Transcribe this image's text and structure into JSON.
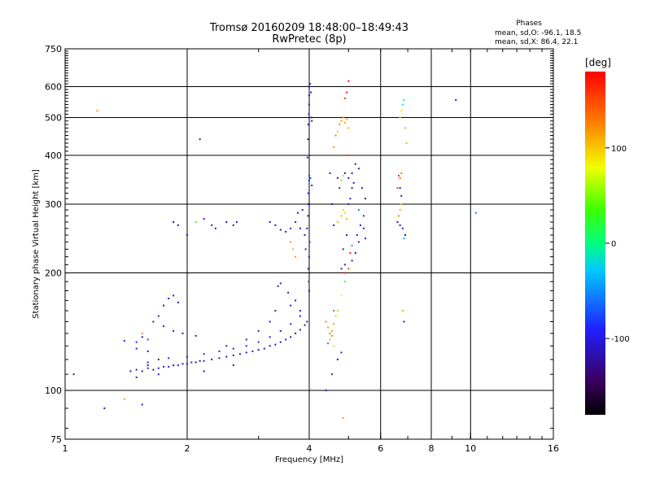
{
  "chart_data": {
    "type": "scatter",
    "title": "Tromsø 20160209 18:48:00–18:49:43",
    "subtitle": "RwPretec (8p)",
    "xlabel": "Frequency [MHz]",
    "ylabel": "Stationary phase Virtual Height [km]",
    "xscale": "log",
    "yscale": "log",
    "xlim": [
      1,
      16
    ],
    "ylim": [
      75,
      750
    ],
    "xticks": [
      1,
      2,
      4,
      6,
      8,
      10,
      16
    ],
    "xtick_labels": [
      "1",
      "2",
      "4",
      "6",
      "8",
      "10",
      "16"
    ],
    "xgrid": [
      2,
      4,
      6,
      8,
      10
    ],
    "yticks": [
      75,
      100,
      200,
      300,
      400,
      500,
      600,
      750
    ],
    "ytick_labels": [
      "75",
      "100",
      "200",
      "300",
      "400",
      "500",
      "600",
      "750"
    ],
    "ygrid": [
      100,
      200,
      300,
      400,
      500,
      600
    ],
    "grid": true,
    "phase_box": {
      "heading": "Phases",
      "line_o": "mean, sd,O: -96.1, 18.5",
      "line_x": "mean, sd,X:  86.4, 22.1"
    },
    "colorbar": {
      "label": "[deg]",
      "range": [
        -180,
        180
      ],
      "ticks": [
        100,
        0,
        -100
      ],
      "tick_labels": [
        "100",
        "0",
        "-100"
      ]
    },
    "echoes": [
      {
        "name": "low-band trace",
        "points": [
          [
            1.45,
            112,
            -110
          ],
          [
            1.5,
            113,
            -112
          ],
          [
            1.55,
            112,
            -105
          ],
          [
            1.6,
            114,
            -108
          ],
          [
            1.65,
            113,
            -110
          ],
          [
            1.7,
            114,
            -106
          ],
          [
            1.75,
            115,
            -112
          ],
          [
            1.8,
            115,
            -108
          ],
          [
            1.85,
            116,
            -110
          ],
          [
            1.9,
            116,
            -104
          ],
          [
            1.95,
            117,
            -110
          ],
          [
            2.0,
            117,
            -107
          ],
          [
            2.05,
            118,
            -112
          ],
          [
            2.1,
            118,
            -106
          ],
          [
            2.15,
            119,
            -110
          ],
          [
            2.2,
            119,
            -105
          ],
          [
            2.3,
            120,
            -110
          ],
          [
            2.4,
            121,
            -104
          ],
          [
            2.5,
            122,
            -110
          ],
          [
            2.6,
            123,
            -106
          ],
          [
            2.7,
            124,
            -112
          ],
          [
            2.8,
            125,
            -108
          ],
          [
            2.9,
            126,
            -110
          ],
          [
            3.0,
            127,
            -103
          ],
          [
            3.1,
            128,
            -112
          ],
          [
            3.2,
            130,
            -110
          ],
          [
            3.3,
            131,
            -118
          ],
          [
            3.4,
            133,
            -110
          ],
          [
            3.5,
            135,
            -106
          ],
          [
            3.6,
            137,
            -112
          ],
          [
            3.7,
            140,
            -110
          ],
          [
            3.8,
            143,
            -105
          ],
          [
            3.9,
            147,
            -110
          ],
          [
            3.95,
            150,
            -108
          ]
        ]
      },
      {
        "name": "low-band upper trace",
        "points": [
          [
            1.6,
            118,
            -95
          ],
          [
            1.7,
            120,
            -100
          ],
          [
            1.8,
            121,
            -98
          ],
          [
            2.0,
            122,
            -102
          ],
          [
            2.2,
            124,
            -100
          ],
          [
            2.4,
            126,
            -96
          ],
          [
            2.6,
            128,
            -102
          ],
          [
            2.8,
            130,
            -100
          ],
          [
            3.0,
            133,
            -98
          ],
          [
            3.2,
            137,
            -104
          ],
          [
            3.4,
            142,
            -100
          ],
          [
            3.6,
            148,
            -97
          ],
          [
            3.8,
            155,
            -102
          ]
        ]
      },
      {
        "name": "low-band scatter",
        "points": [
          [
            1.4,
            134,
            -100
          ],
          [
            1.5,
            128,
            -110
          ],
          [
            1.55,
            137,
            -105
          ],
          [
            1.6,
            126,
            -108
          ],
          [
            1.65,
            150,
            -112
          ],
          [
            1.7,
            155,
            -104
          ],
          [
            1.75,
            165,
            -110
          ],
          [
            1.8,
            172,
            -106
          ],
          [
            1.85,
            175,
            -110
          ],
          [
            1.9,
            168,
            -108
          ],
          [
            1.75,
            146,
            -104
          ],
          [
            1.85,
            142,
            -112
          ],
          [
            1.95,
            140,
            -106
          ],
          [
            2.1,
            138,
            -110
          ],
          [
            2.5,
            130,
            -104
          ],
          [
            2.8,
            135,
            -112
          ],
          [
            3.0,
            142,
            -108
          ],
          [
            3.2,
            150,
            -110
          ],
          [
            3.3,
            160,
            -104
          ],
          [
            3.35,
            185,
            -110
          ],
          [
            3.4,
            188,
            -106
          ],
          [
            3.55,
            178,
            -110
          ],
          [
            3.6,
            165,
            -104
          ],
          [
            3.7,
            170,
            -110
          ],
          [
            3.8,
            160,
            -108
          ],
          [
            1.5,
            108,
            -110
          ],
          [
            1.6,
            116,
            -112
          ],
          [
            1.7,
            110,
            -108
          ],
          [
            2.2,
            112,
            -104
          ],
          [
            2.6,
            116,
            -110
          ],
          [
            1.55,
            140,
            120
          ],
          [
            1.6,
            135,
            -80
          ],
          [
            1.5,
            133,
            -90
          ]
        ]
      },
      {
        "name": "Fregion 4MHz",
        "points": [
          [
            3.95,
            260,
            -110
          ],
          [
            3.97,
            280,
            -106
          ],
          [
            3.98,
            300,
            -112
          ],
          [
            3.98,
            320,
            -104
          ],
          [
            4.0,
            345,
            -85
          ],
          [
            4.0,
            355,
            -70
          ],
          [
            4.01,
            240,
            -110
          ],
          [
            4.0,
            220,
            -106
          ],
          [
            3.98,
            205,
            -112
          ],
          [
            3.99,
            190,
            -104
          ],
          [
            4.0,
            180,
            -110
          ],
          [
            3.96,
            395,
            -108
          ],
          [
            3.97,
            440,
            -112
          ],
          [
            3.98,
            480,
            -106
          ],
          [
            3.99,
            510,
            -110
          ],
          [
            4.0,
            540,
            -104
          ],
          [
            4.0,
            570,
            -112
          ],
          [
            4.0,
            600,
            -108
          ],
          [
            4.02,
            610,
            -110
          ],
          [
            4.05,
            500,
            -104
          ],
          [
            4.06,
            490,
            -112
          ],
          [
            4.04,
            580,
            -106
          ],
          [
            4.03,
            350,
            -60
          ],
          [
            4.06,
            335,
            -110
          ],
          [
            3.7,
            270,
            -100
          ],
          [
            3.75,
            285,
            -106
          ],
          [
            3.8,
            260,
            -110
          ],
          [
            3.85,
            290,
            -112
          ],
          [
            3.9,
            250,
            -104
          ],
          [
            3.92,
            230,
            -110
          ]
        ]
      },
      {
        "name": "mixed band 4.5-5.5MHz",
        "points": [
          [
            4.4,
            150,
            120
          ],
          [
            4.45,
            145,
            118
          ],
          [
            4.5,
            140,
            122
          ],
          [
            4.55,
            142,
            115
          ],
          [
            4.6,
            148,
            120
          ],
          [
            4.5,
            135,
            110
          ],
          [
            4.55,
            138,
            125
          ],
          [
            4.6,
            130,
            60
          ],
          [
            4.45,
            132,
            -60
          ],
          [
            4.7,
            160,
            100
          ],
          [
            4.8,
            175,
            80
          ],
          [
            4.9,
            190,
            40
          ],
          [
            4.8,
            205,
            -110
          ],
          [
            4.9,
            210,
            -100
          ],
          [
            4.85,
            230,
            -105
          ],
          [
            4.95,
            250,
            -110
          ],
          [
            4.7,
            270,
            105
          ],
          [
            4.8,
            280,
            110
          ],
          [
            4.85,
            290,
            100
          ],
          [
            4.9,
            285,
            60
          ],
          [
            4.95,
            275,
            108
          ],
          [
            5.0,
            300,
            -100
          ],
          [
            5.05,
            310,
            -110
          ],
          [
            5.1,
            330,
            -105
          ],
          [
            5.15,
            340,
            -112
          ],
          [
            4.75,
            480,
            120
          ],
          [
            4.8,
            490,
            118
          ],
          [
            4.85,
            500,
            122
          ],
          [
            4.9,
            485,
            115
          ],
          [
            4.95,
            495,
            110
          ],
          [
            4.7,
            460,
            100
          ],
          [
            5.0,
            470,
            108
          ],
          [
            4.6,
            420,
            118
          ],
          [
            4.65,
            450,
            130
          ],
          [
            4.5,
            360,
            -110
          ],
          [
            4.55,
            300,
            -105
          ],
          [
            4.6,
            265,
            -110
          ],
          [
            4.7,
            350,
            -105
          ],
          [
            4.75,
            330,
            -100
          ],
          [
            4.8,
            345,
            40
          ],
          [
            4.85,
            355,
            60
          ],
          [
            4.9,
            360,
            -110
          ],
          [
            5.0,
            350,
            -112
          ],
          [
            5.1,
            360,
            -108
          ],
          [
            5.2,
            380,
            -104
          ],
          [
            5.3,
            370,
            -110
          ],
          [
            5.4,
            330,
            -106
          ],
          [
            5.5,
            310,
            -112
          ],
          [
            5.45,
            280,
            -108
          ],
          [
            5.35,
            265,
            -104
          ],
          [
            5.25,
            250,
            -110
          ],
          [
            5.3,
            240,
            -106
          ],
          [
            5.2,
            225,
            -112
          ],
          [
            5.1,
            215,
            -108
          ],
          [
            5.0,
            205,
            150
          ],
          [
            4.95,
            400,
            150
          ],
          [
            4.9,
            560,
            160
          ],
          [
            4.95,
            580,
            170
          ],
          [
            5.0,
            620,
            175
          ],
          [
            5.3,
            290,
            -60
          ],
          [
            5.45,
            260,
            -100
          ],
          [
            5.5,
            245,
            -112
          ],
          [
            5.1,
            235,
            -40
          ],
          [
            5.05,
            225,
            170
          ],
          [
            4.9,
            200,
            170
          ],
          [
            4.6,
            160,
            150
          ],
          [
            4.65,
            155,
            60
          ],
          [
            4.7,
            120,
            -110
          ],
          [
            4.8,
            125,
            -106
          ],
          [
            4.55,
            110,
            -100
          ],
          [
            4.4,
            100,
            -105
          ],
          [
            4.85,
            85,
            110
          ]
        ]
      },
      {
        "name": "upper band",
        "points": [
          [
            6.6,
            270,
            -110
          ],
          [
            6.7,
            265,
            -106
          ],
          [
            6.65,
            280,
            120
          ],
          [
            6.7,
            290,
            110
          ],
          [
            6.75,
            300,
            100
          ],
          [
            6.6,
            330,
            150
          ],
          [
            6.65,
            355,
            160
          ],
          [
            6.7,
            350,
            140
          ],
          [
            6.75,
            360,
            130
          ],
          [
            6.8,
            260,
            -100
          ],
          [
            6.85,
            245,
            -40
          ],
          [
            6.9,
            250,
            -110
          ],
          [
            6.7,
            500,
            100
          ],
          [
            6.75,
            520,
            90
          ],
          [
            6.8,
            540,
            -20
          ],
          [
            6.85,
            555,
            10
          ],
          [
            6.9,
            470,
            110
          ],
          [
            6.95,
            430,
            105
          ],
          [
            6.8,
            160,
            110
          ],
          [
            6.85,
            150,
            -100
          ],
          [
            9.2,
            555,
            -112
          ],
          [
            10.3,
            285,
            -60
          ],
          [
            6.7,
            330,
            -105
          ],
          [
            6.75,
            315,
            -110
          ]
        ]
      },
      {
        "name": "isolated points",
        "points": [
          [
            1.2,
            520,
            120
          ],
          [
            1.4,
            95,
            115
          ],
          [
            1.55,
            92,
            -110
          ],
          [
            1.05,
            110,
            -110
          ],
          [
            1.25,
            90,
            -110
          ],
          [
            1.85,
            270,
            -105
          ],
          [
            1.9,
            265,
            -110
          ],
          [
            2.0,
            250,
            -110
          ],
          [
            2.1,
            270,
            30
          ],
          [
            2.15,
            440,
            -110
          ],
          [
            2.2,
            275,
            -105
          ],
          [
            2.3,
            265,
            -110
          ],
          [
            2.35,
            260,
            -106
          ],
          [
            2.5,
            270,
            -108
          ],
          [
            2.6,
            265,
            -104
          ],
          [
            2.65,
            270,
            -100
          ],
          [
            3.2,
            270,
            -110
          ],
          [
            3.3,
            265,
            -106
          ],
          [
            3.4,
            258,
            -112
          ],
          [
            3.5,
            255,
            -104
          ],
          [
            3.6,
            260,
            -110
          ],
          [
            3.65,
            230,
            110
          ],
          [
            3.6,
            240,
            120
          ],
          [
            3.7,
            220,
            115
          ]
        ]
      }
    ]
  }
}
